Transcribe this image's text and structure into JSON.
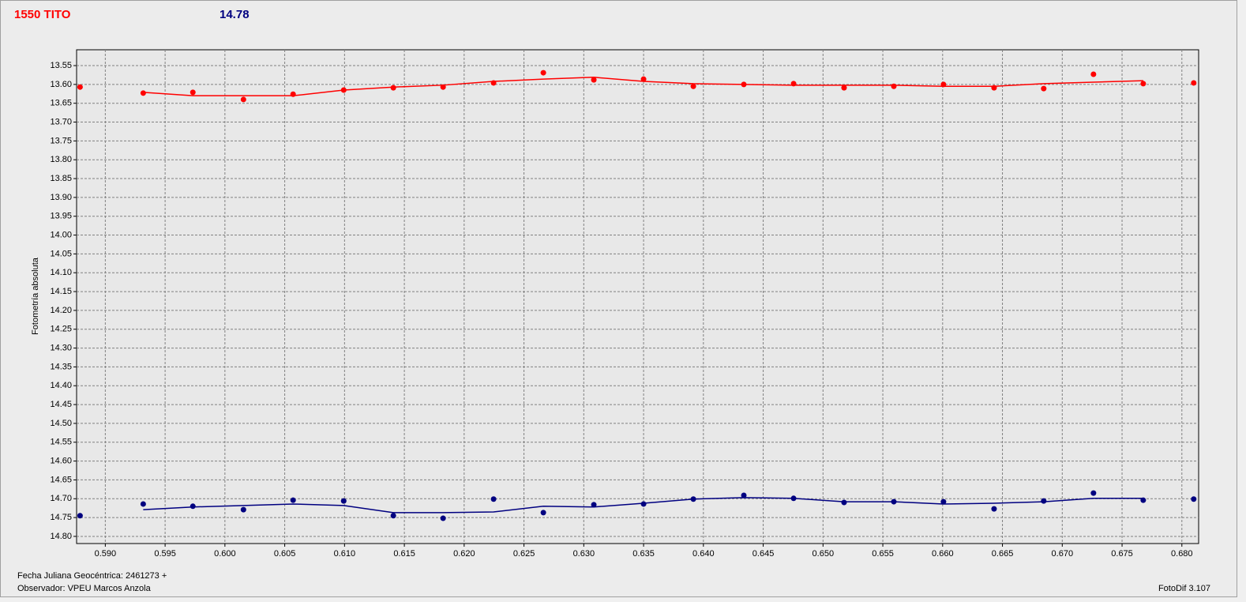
{
  "chart_data": {
    "type": "scatter",
    "header_labels": [
      {
        "text": "1550 TITO",
        "color": "#ff0000"
      },
      {
        "text": "14.78",
        "color": "#000080"
      }
    ],
    "ylabel": "Fotometría absoluta",
    "xlim": [
      0.5876,
      0.6814
    ],
    "ylim": [
      13.508,
      14.819
    ],
    "inverted": true,
    "grid": true,
    "xticks": [
      {
        "value": 0.59,
        "label": "0.590"
      },
      0.595,
      {
        "value": 0.6,
        "label": "0.600"
      },
      0.605,
      {
        "value": 0.61,
        "label": "0.610"
      },
      0.615,
      {
        "value": 0.62,
        "label": "0.620"
      },
      0.625,
      {
        "value": 0.63,
        "label": "0.630"
      },
      0.635,
      {
        "value": 0.64,
        "label": "0.640"
      },
      0.645,
      {
        "value": 0.65,
        "label": "0.650"
      },
      0.655,
      {
        "value": 0.66,
        "label": "0.660"
      },
      0.665,
      {
        "value": 0.67,
        "label": "0.670"
      },
      0.675,
      {
        "value": 0.68,
        "label": "0.680"
      }
    ],
    "yticks": [
      13.55,
      {
        "value": 13.6,
        "label": "13.60"
      },
      13.65,
      {
        "value": 13.7,
        "label": "13.70"
      },
      13.75,
      {
        "value": 13.8,
        "label": "13.80"
      },
      13.85,
      {
        "value": 13.9,
        "label": "13.90"
      },
      13.95,
      {
        "value": 14,
        "label": "14.00"
      },
      14.05,
      {
        "value": 14.1,
        "label": "14.10"
      },
      14.15,
      {
        "value": 14.2,
        "label": "14.20"
      },
      14.25,
      {
        "value": 14.3,
        "label": "14.30"
      },
      14.35,
      {
        "value": 14.4,
        "label": "14.40"
      },
      14.45,
      {
        "value": 14.5,
        "label": "14.50"
      },
      14.55,
      {
        "value": 14.6,
        "label": "14.60"
      },
      14.65,
      {
        "value": 14.7,
        "label": "14.70"
      },
      14.75,
      {
        "value": 14.8,
        "label": "14.80"
      }
    ],
    "x": [
      0.58789,
      0.59317,
      0.59732,
      0.60155,
      0.6057,
      0.60993,
      0.61408,
      0.61824,
      0.62246,
      0.62662,
      0.63084,
      0.635,
      0.63916,
      0.64338,
      0.64754,
      0.65176,
      0.65592,
      0.66007,
      0.6643,
      0.66845,
      0.67261,
      0.67677,
      0.68099
    ],
    "fit_x": [
      0.59317,
      0.59732,
      0.60155,
      0.6057,
      0.60993,
      0.61408,
      0.61824,
      0.62246,
      0.62662,
      0.63084,
      0.635,
      0.63916,
      0.64338,
      0.64754,
      0.65176,
      0.65592,
      0.66007,
      0.6643,
      0.66845,
      0.67261,
      0.67677
    ],
    "series": [
      {
        "color": "#ff0000",
        "values": [
          13.607,
          13.623,
          13.621,
          13.64,
          13.626,
          13.615,
          13.609,
          13.607,
          13.596,
          13.569,
          13.588,
          13.586,
          13.605,
          13.6,
          13.598,
          13.609,
          13.605,
          13.6,
          13.609,
          13.611,
          13.573,
          13.598,
          13.596
        ],
        "fit": [
          13.621,
          13.63,
          13.63,
          13.63,
          13.615,
          13.607,
          13.602,
          13.592,
          13.586,
          13.581,
          13.592,
          13.598,
          13.6,
          13.602,
          13.602,
          13.602,
          13.605,
          13.605,
          13.598,
          13.594,
          13.59
        ]
      },
      {
        "color": "#000080",
        "values": [
          14.745,
          14.714,
          14.72,
          14.729,
          14.704,
          14.706,
          14.745,
          14.752,
          14.701,
          14.737,
          14.716,
          14.714,
          14.701,
          14.691,
          14.699,
          14.71,
          14.708,
          14.708,
          14.727,
          14.706,
          14.685,
          14.704,
          14.701
        ],
        "fit": [
          14.729,
          14.722,
          14.718,
          14.714,
          14.718,
          14.737,
          14.737,
          14.735,
          14.72,
          14.722,
          14.712,
          14.701,
          14.697,
          14.699,
          14.708,
          14.708,
          14.714,
          14.712,
          14.708,
          14.699,
          14.699
        ]
      }
    ],
    "footer": {
      "date": "Fecha Juliana Geocéntrica: 2461273 +",
      "observer": "Observador: VPEU Marcos Anzola",
      "software": "FotoDif 3.107"
    }
  }
}
